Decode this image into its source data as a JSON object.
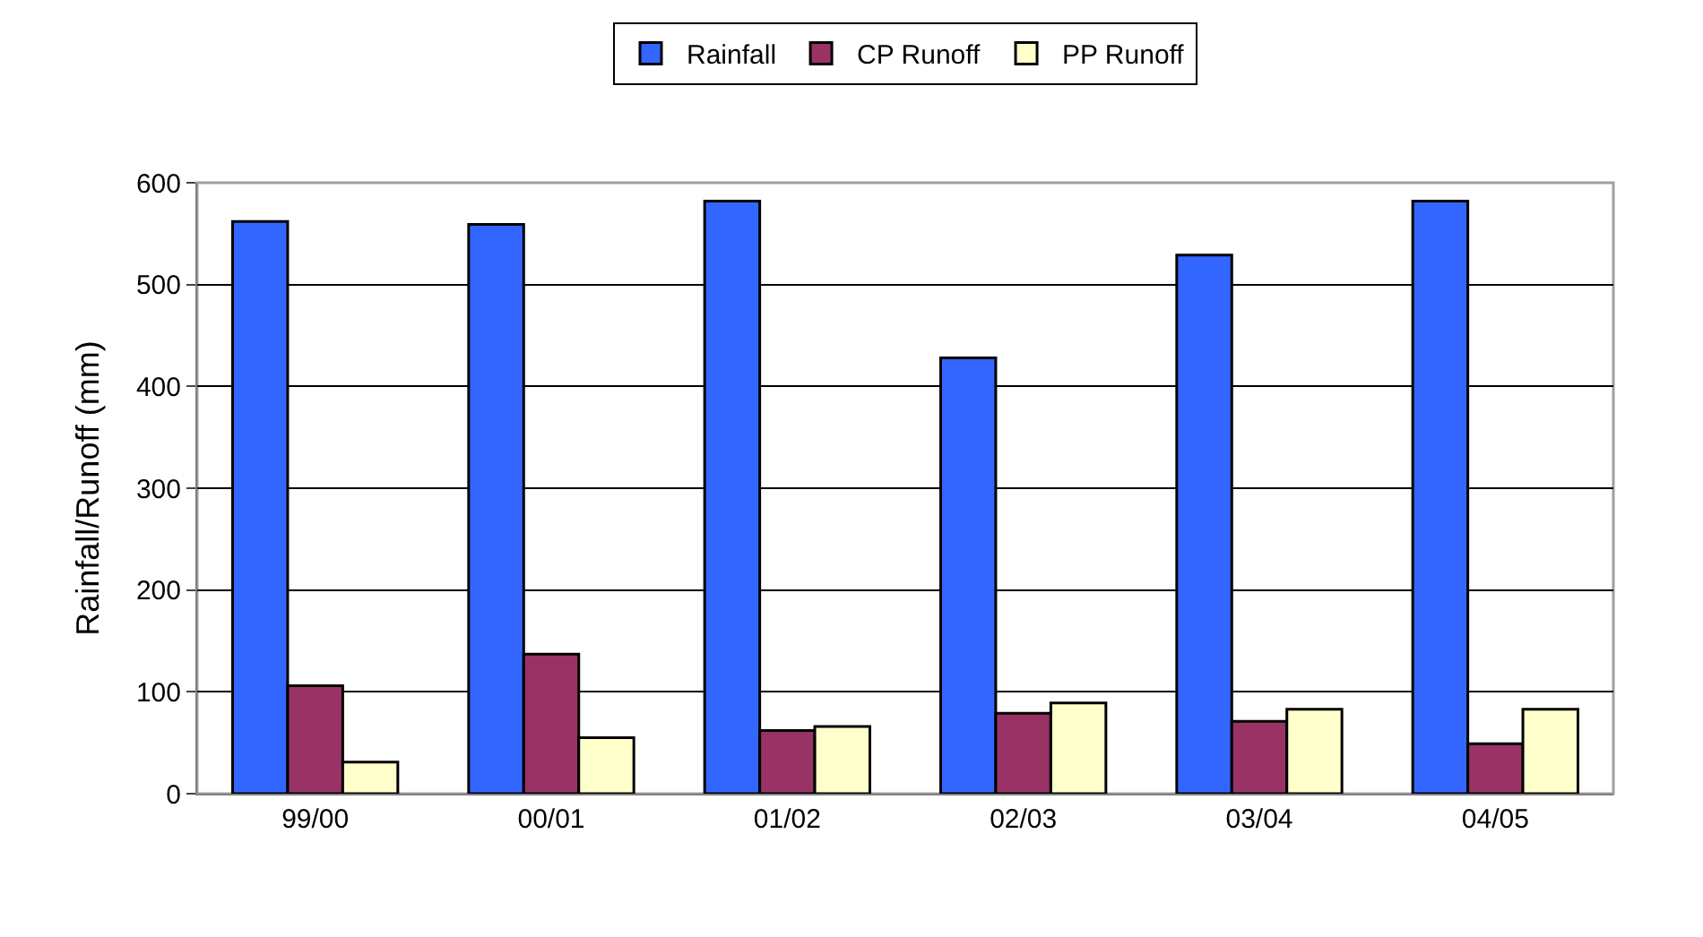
{
  "chart_data": {
    "type": "bar",
    "ylabel": "Rainfall/Runoff (mm)",
    "categories": [
      "99/00",
      "00/01",
      "01/02",
      "02/03",
      "03/04",
      "04/05"
    ],
    "series": [
      {
        "name": "Rainfall",
        "color": "#3366ff",
        "values": [
          562,
          559,
          582,
          428,
          529,
          582
        ]
      },
      {
        "name": "CP Runoff",
        "color": "#993366",
        "values": [
          106,
          137,
          62,
          79,
          71,
          49
        ]
      },
      {
        "name": "PP Runoff",
        "color": "#ffffcc",
        "values": [
          31,
          55,
          66,
          89,
          83,
          83
        ]
      }
    ],
    "ylim": [
      0,
      600
    ],
    "yticks": [
      0,
      100,
      200,
      300,
      400,
      500,
      600
    ],
    "grid": "y",
    "legend": "top"
  }
}
